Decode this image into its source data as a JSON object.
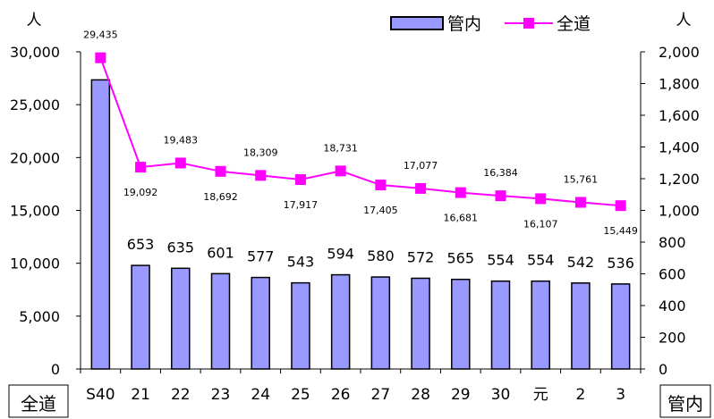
{
  "chart_data": {
    "type": "bar",
    "categories": [
      "S40",
      "21",
      "22",
      "23",
      "24",
      "25",
      "26",
      "27",
      "28",
      "29",
      "30",
      "元",
      "2",
      "3"
    ],
    "series": [
      {
        "name": "管内",
        "type": "bar",
        "axis": "right",
        "color": "#9999ff",
        "values": [
          1823,
          653,
          635,
          601,
          577,
          543,
          594,
          580,
          572,
          565,
          554,
          554,
          542,
          536
        ],
        "labels": [
          "",
          "653",
          "635",
          "601",
          "577",
          "543",
          "594",
          "580",
          "572",
          "565",
          "554",
          "554",
          "542",
          "536"
        ]
      },
      {
        "name": "全道",
        "type": "line",
        "axis": "left",
        "color": "#ff00ff",
        "values": [
          29435,
          19092,
          19483,
          18692,
          18309,
          17917,
          18731,
          17405,
          17077,
          16681,
          16384,
          16107,
          15761,
          15449
        ],
        "labels": [
          "29,435",
          "19,092",
          "19,483",
          "18,692",
          "18,309",
          "17,917",
          "18,731",
          "17,405",
          "17,077",
          "16,681",
          "16,384",
          "16,107",
          "15,761",
          "15,449"
        ]
      }
    ],
    "y_left": {
      "unit": "人",
      "ylim": [
        0,
        30000
      ],
      "ticks": [
        "0",
        "5,000",
        "10,000",
        "15,000",
        "20,000",
        "25,000",
        "30,000"
      ],
      "title": "全道"
    },
    "y_right": {
      "unit": "人",
      "ylim": [
        0,
        2000
      ],
      "ticks": [
        "0",
        "200",
        "400",
        "600",
        "800",
        "1,000",
        "1,200",
        "1,400",
        "1,600",
        "1,800",
        "2,000"
      ],
      "title": "管内"
    },
    "legend": {
      "placement": "top-right",
      "items": [
        "管内",
        "全道"
      ]
    },
    "grid": false
  }
}
